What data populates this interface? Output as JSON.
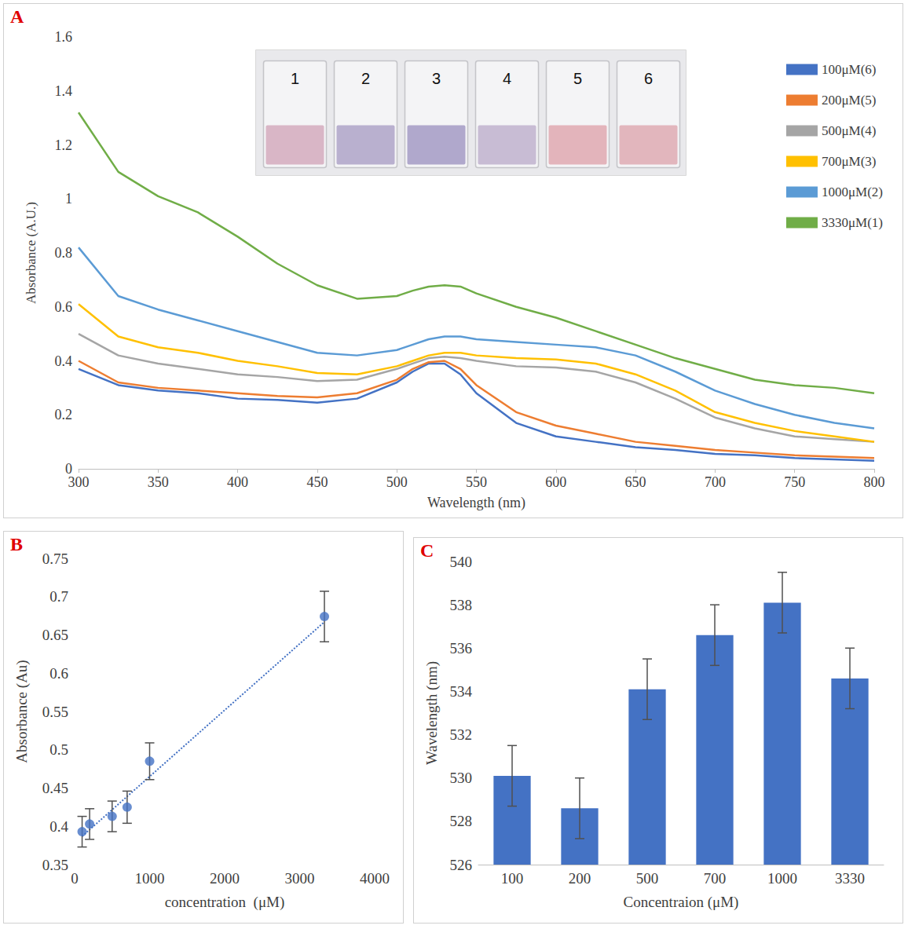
{
  "chart_data": [
    {
      "type": "line",
      "panel": "A",
      "x_label": "Wavelength (nm)",
      "y_label": "Absorbance (A.U.)",
      "x": [
        300,
        325,
        350,
        375,
        400,
        425,
        450,
        475,
        500,
        510,
        520,
        530,
        540,
        550,
        575,
        600,
        625,
        650,
        675,
        700,
        725,
        750,
        775,
        800
      ],
      "series": [
        {
          "name": "100μM(6)",
          "color": "#4472c4",
          "values": [
            0.37,
            0.31,
            0.29,
            0.28,
            0.26,
            0.255,
            0.245,
            0.26,
            0.32,
            0.36,
            0.39,
            0.39,
            0.35,
            0.28,
            0.17,
            0.12,
            0.1,
            0.08,
            0.07,
            0.055,
            0.05,
            0.04,
            0.035,
            0.03
          ]
        },
        {
          "name": "200μM(5)",
          "color": "#ed7d31",
          "values": [
            0.4,
            0.32,
            0.3,
            0.29,
            0.28,
            0.27,
            0.265,
            0.28,
            0.33,
            0.37,
            0.395,
            0.4,
            0.37,
            0.31,
            0.21,
            0.16,
            0.13,
            0.1,
            0.085,
            0.07,
            0.06,
            0.05,
            0.045,
            0.04
          ]
        },
        {
          "name": "500μM(4)",
          "color": "#a5a5a5",
          "values": [
            0.5,
            0.42,
            0.39,
            0.37,
            0.35,
            0.34,
            0.325,
            0.33,
            0.37,
            0.39,
            0.41,
            0.415,
            0.41,
            0.4,
            0.38,
            0.375,
            0.36,
            0.32,
            0.26,
            0.19,
            0.15,
            0.12,
            0.11,
            0.1
          ]
        },
        {
          "name": "700μM(3)",
          "color": "#ffc000",
          "values": [
            0.61,
            0.49,
            0.45,
            0.43,
            0.4,
            0.38,
            0.355,
            0.35,
            0.38,
            0.4,
            0.42,
            0.43,
            0.43,
            0.42,
            0.41,
            0.405,
            0.39,
            0.35,
            0.29,
            0.21,
            0.17,
            0.14,
            0.12,
            0.1
          ]
        },
        {
          "name": "1000μM(2)",
          "color": "#5b9bd5",
          "values": [
            0.82,
            0.64,
            0.59,
            0.55,
            0.51,
            0.47,
            0.43,
            0.42,
            0.44,
            0.46,
            0.48,
            0.49,
            0.49,
            0.48,
            0.47,
            0.46,
            0.45,
            0.42,
            0.36,
            0.29,
            0.24,
            0.2,
            0.17,
            0.15
          ]
        },
        {
          "name": "3330μM(1)",
          "color": "#70ad47",
          "values": [
            1.32,
            1.1,
            1.01,
            0.95,
            0.86,
            0.76,
            0.68,
            0.63,
            0.64,
            0.66,
            0.675,
            0.68,
            0.675,
            0.65,
            0.6,
            0.56,
            0.51,
            0.46,
            0.41,
            0.37,
            0.33,
            0.31,
            0.3,
            0.28
          ]
        }
      ],
      "xlim": [
        300,
        800
      ],
      "xticks": [
        300,
        350,
        400,
        450,
        500,
        550,
        600,
        650,
        700,
        750,
        800
      ],
      "ylim": [
        0,
        1.6
      ],
      "yticks": [
        0,
        0.2,
        0.4,
        0.6,
        0.8,
        1,
        1.2,
        1.4,
        1.6
      ],
      "grid": false,
      "legend": "right",
      "annotations": [
        "1",
        "2",
        "3",
        "4",
        "5",
        "6"
      ]
    },
    {
      "type": "scatter",
      "panel": "B",
      "x_label": "concentration  (μM)",
      "y_label": "Absorbance (Au)",
      "x": [
        100,
        200,
        500,
        700,
        1000,
        3330
      ],
      "values": [
        0.393,
        0.403,
        0.413,
        0.425,
        0.485,
        0.674
      ],
      "errors": [
        0.02,
        0.02,
        0.02,
        0.021,
        0.024,
        0.033
      ],
      "trend": {
        "x": [
          100,
          3330
        ],
        "values": [
          0.387,
          0.667
        ],
        "line_style": "dotted"
      },
      "color": "#4472c4",
      "marker": "circle",
      "xlim": [
        0,
        4000
      ],
      "xticks": [
        0,
        1000,
        2000,
        3000,
        4000
      ],
      "ylim": [
        0.35,
        0.75
      ],
      "yticks": [
        0.35,
        0.4,
        0.45,
        0.5,
        0.55,
        0.6,
        0.65,
        0.7,
        0.75
      ],
      "grid": false
    },
    {
      "type": "bar",
      "panel": "C",
      "x_label": "Concentraion (μM)",
      "y_label": "Wavelength (nm)",
      "categories": [
        "100",
        "200",
        "500",
        "700",
        "1000",
        "3330"
      ],
      "values": [
        530.1,
        528.6,
        534.1,
        536.6,
        538.1,
        534.6
      ],
      "errors": [
        1.4,
        1.4,
        1.4,
        1.4,
        1.4,
        1.4
      ],
      "color": "#4472c4",
      "ylim": [
        526,
        540
      ],
      "yticks": [
        526,
        528,
        530,
        532,
        534,
        536,
        538,
        540
      ],
      "grid": false
    }
  ]
}
